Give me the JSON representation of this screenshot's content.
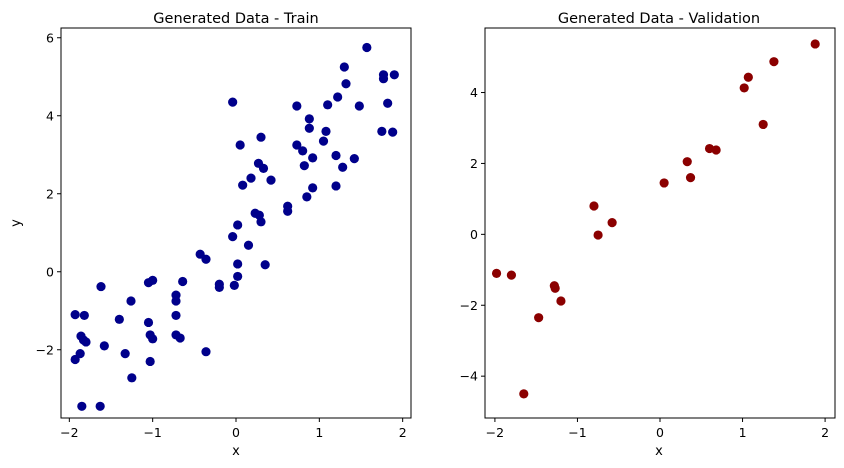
{
  "chart_data": [
    {
      "type": "scatter",
      "title": "Generated Data - Train",
      "xlabel": "x",
      "ylabel": "y",
      "xlim": [
        -2.1,
        2.1
      ],
      "ylim": [
        -3.75,
        6.25
      ],
      "xticks": [
        -2,
        -1,
        0,
        1,
        2
      ],
      "yticks": [
        -2,
        0,
        2,
        4,
        6
      ],
      "grid": false,
      "color": "#00008b",
      "points": [
        [
          -1.93,
          -1.1
        ],
        [
          -1.82,
          -1.12
        ],
        [
          -1.93,
          -2.25
        ],
        [
          -1.87,
          -2.1
        ],
        [
          -1.86,
          -1.65
        ],
        [
          -1.83,
          -1.75
        ],
        [
          -1.8,
          -1.8
        ],
        [
          -1.85,
          -3.45
        ],
        [
          -1.63,
          -3.45
        ],
        [
          -1.62,
          -0.38
        ],
        [
          -1.58,
          -1.9
        ],
        [
          -1.4,
          -1.22
        ],
        [
          -1.33,
          -2.1
        ],
        [
          -1.26,
          -0.75
        ],
        [
          -1.25,
          -2.72
        ],
        [
          -1.05,
          -0.28
        ],
        [
          -1.0,
          -0.22
        ],
        [
          -1.05,
          -1.3
        ],
        [
          -1.03,
          -1.62
        ],
        [
          -1.0,
          -1.72
        ],
        [
          -1.03,
          -2.3
        ],
        [
          -0.72,
          -0.6
        ],
        [
          -0.72,
          -0.75
        ],
        [
          -0.72,
          -1.12
        ],
        [
          -0.72,
          -1.62
        ],
        [
          -0.67,
          -1.7
        ],
        [
          -0.64,
          -0.25
        ],
        [
          -0.43,
          0.45
        ],
        [
          -0.36,
          0.32
        ],
        [
          -0.36,
          -2.05
        ],
        [
          -0.2,
          -0.32
        ],
        [
          -0.2,
          -0.4
        ],
        [
          -0.04,
          4.35
        ],
        [
          -0.02,
          -0.35
        ],
        [
          -0.04,
          0.9
        ],
        [
          0.02,
          0.2
        ],
        [
          0.02,
          -0.12
        ],
        [
          0.02,
          1.2
        ],
        [
          0.05,
          3.25
        ],
        [
          0.08,
          2.22
        ],
        [
          0.15,
          0.68
        ],
        [
          0.18,
          2.4
        ],
        [
          0.23,
          1.5
        ],
        [
          0.27,
          2.78
        ],
        [
          0.3,
          3.45
        ],
        [
          0.28,
          1.45
        ],
        [
          0.3,
          1.28
        ],
        [
          0.33,
          2.65
        ],
        [
          0.35,
          0.18
        ],
        [
          0.42,
          2.35
        ],
        [
          0.62,
          1.68
        ],
        [
          0.62,
          1.55
        ],
        [
          0.73,
          4.25
        ],
        [
          0.73,
          3.25
        ],
        [
          0.8,
          3.1
        ],
        [
          0.82,
          2.72
        ],
        [
          0.85,
          1.92
        ],
        [
          0.88,
          3.92
        ],
        [
          0.88,
          3.68
        ],
        [
          0.92,
          2.15
        ],
        [
          0.92,
          2.92
        ],
        [
          1.05,
          3.35
        ],
        [
          1.08,
          3.6
        ],
        [
          1.1,
          4.28
        ],
        [
          1.2,
          2.2
        ],
        [
          1.2,
          2.98
        ],
        [
          1.22,
          4.48
        ],
        [
          1.28,
          2.68
        ],
        [
          1.3,
          5.25
        ],
        [
          1.32,
          4.82
        ],
        [
          1.42,
          2.9
        ],
        [
          1.48,
          4.25
        ],
        [
          1.57,
          5.75
        ],
        [
          1.75,
          3.6
        ],
        [
          1.77,
          5.05
        ],
        [
          1.77,
          4.95
        ],
        [
          1.82,
          4.32
        ],
        [
          1.88,
          3.58
        ],
        [
          1.9,
          5.05
        ]
      ]
    },
    {
      "type": "scatter",
      "title": "Generated Data - Validation",
      "xlabel": "x",
      "ylabel": "",
      "xlim": [
        -2.12,
        2.12
      ],
      "ylim": [
        -5.18,
        5.82
      ],
      "xticks": [
        -2,
        -1,
        0,
        1,
        2
      ],
      "yticks": [
        -4,
        -2,
        0,
        2,
        4
      ],
      "grid": false,
      "color": "#8b0000",
      "points": [
        [
          -1.98,
          -1.1
        ],
        [
          -1.8,
          -1.15
        ],
        [
          -1.65,
          -4.5
        ],
        [
          -1.47,
          -2.35
        ],
        [
          -1.28,
          -1.45
        ],
        [
          -1.27,
          -1.52
        ],
        [
          -1.2,
          -1.88
        ],
        [
          -0.8,
          0.8
        ],
        [
          -0.75,
          -0.02
        ],
        [
          -0.58,
          0.33
        ],
        [
          0.05,
          1.45
        ],
        [
          0.33,
          2.05
        ],
        [
          0.37,
          1.6
        ],
        [
          0.6,
          2.42
        ],
        [
          0.68,
          2.38
        ],
        [
          1.02,
          4.13
        ],
        [
          1.07,
          4.43
        ],
        [
          1.25,
          3.1
        ],
        [
          1.38,
          4.87
        ],
        [
          1.88,
          5.37
        ]
      ]
    }
  ]
}
